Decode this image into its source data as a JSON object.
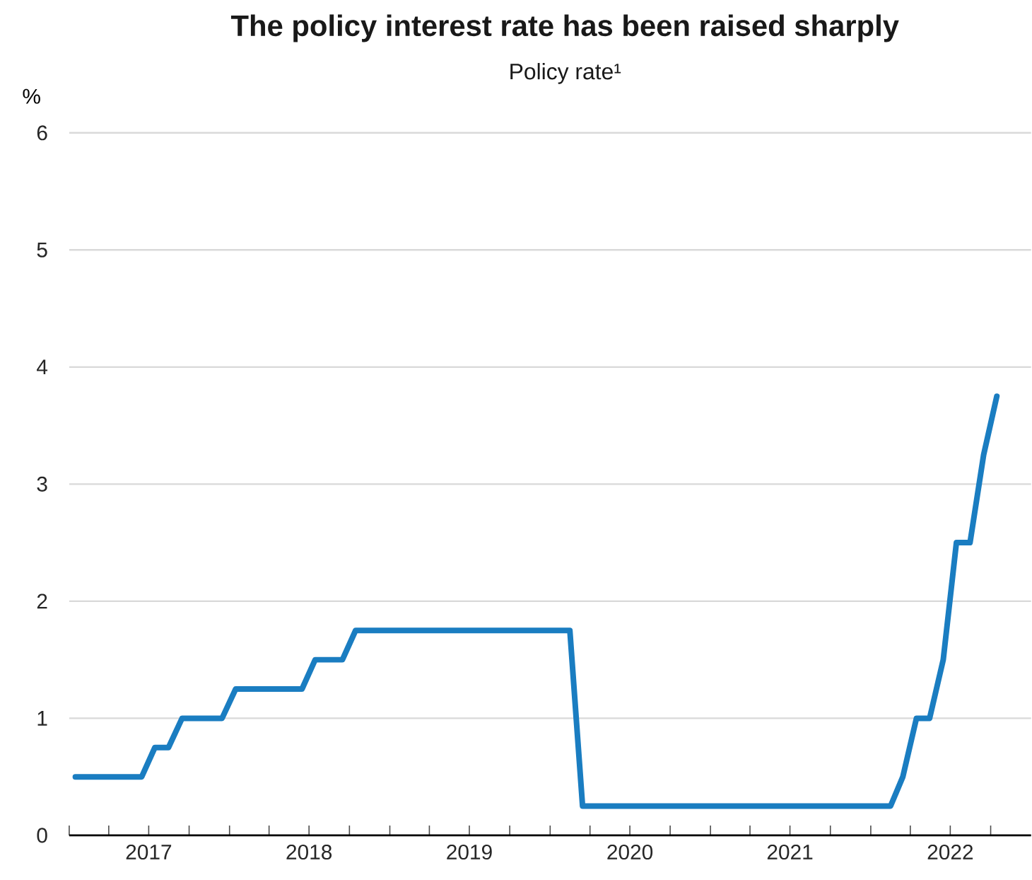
{
  "chart_data": {
    "type": "line",
    "title": "The policy interest rate has been raised sharply",
    "subtitle": "Policy rate¹",
    "ylabel": "%",
    "x": [
      "2017-01-15",
      "2017-06-15",
      "2017-07-15",
      "2017-08-15",
      "2017-09-15",
      "2017-12-15",
      "2018-01-15",
      "2018-06-15",
      "2018-07-15",
      "2018-09-15",
      "2018-10-15",
      "2020-02-15",
      "2020-03-15",
      "2022-02-15",
      "2022-03-15",
      "2022-04-15",
      "2022-05-15",
      "2022-06-15",
      "2022-07-15",
      "2022-08-15",
      "2022-09-15",
      "2022-10-15"
    ],
    "series": [
      {
        "color": "#1a7dc1",
        "values": [
          0.5,
          0.5,
          0.75,
          0.75,
          1.0,
          1.0,
          1.25,
          1.25,
          1.5,
          1.5,
          1.75,
          1.75,
          0.25,
          0.25,
          0.5,
          1.0,
          1.0,
          1.5,
          2.5,
          2.5,
          3.25,
          3.75
        ]
      }
    ],
    "xlim": [
      "2017-01-01",
      "2023-01-01"
    ],
    "xticks": [
      {
        "value": "2017-01-01",
        "label": null
      },
      {
        "value": "2017-04-01",
        "label": null
      },
      {
        "value": "2017-07-01",
        "label": "2017"
      },
      {
        "value": "2017-10-01",
        "label": null
      },
      {
        "value": "2018-01-01",
        "label": null
      },
      {
        "value": "2018-04-01",
        "label": null
      },
      {
        "value": "2018-07-01",
        "label": "2018"
      },
      {
        "value": "2018-10-01",
        "label": null
      },
      {
        "value": "2019-01-01",
        "label": null
      },
      {
        "value": "2019-04-01",
        "label": null
      },
      {
        "value": "2019-07-01",
        "label": "2019"
      },
      {
        "value": "2019-10-01",
        "label": null
      },
      {
        "value": "2020-01-01",
        "label": null
      },
      {
        "value": "2020-04-01",
        "label": null
      },
      {
        "value": "2020-07-01",
        "label": "2020"
      },
      {
        "value": "2020-10-01",
        "label": null
      },
      {
        "value": "2021-01-01",
        "label": null
      },
      {
        "value": "2021-04-01",
        "label": null
      },
      {
        "value": "2021-07-01",
        "label": "2021"
      },
      {
        "value": "2021-10-01",
        "label": null
      },
      {
        "value": "2022-01-01",
        "label": null
      },
      {
        "value": "2022-04-01",
        "label": null
      },
      {
        "value": "2022-07-01",
        "label": "2022"
      },
      {
        "value": "2022-10-01",
        "label": null
      }
    ],
    "ylim": [
      0,
      6
    ],
    "yticks": [
      0,
      1,
      2,
      3,
      4,
      5,
      6
    ],
    "grid": "y",
    "marker": "none",
    "line_style": "solid"
  }
}
